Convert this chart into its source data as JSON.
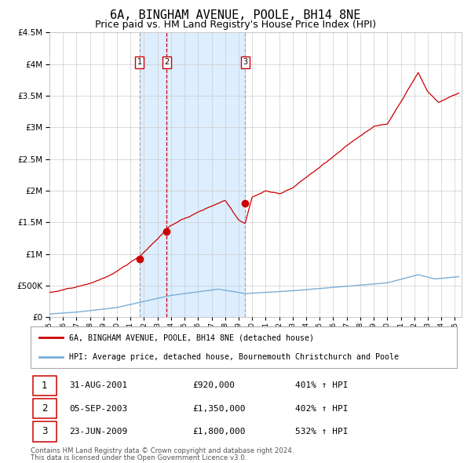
{
  "title": "6A, BINGHAM AVENUE, POOLE, BH14 8NE",
  "subtitle": "Price paid vs. HM Land Registry's House Price Index (HPI)",
  "legend_line1": "6A, BINGHAM AVENUE, POOLE, BH14 8NE (detached house)",
  "legend_line2": "HPI: Average price, detached house, Bournemouth Christchurch and Poole",
  "footer_line1": "Contains HM Land Registry data © Crown copyright and database right 2024.",
  "footer_line2": "This data is licensed under the Open Government Licence v3.0.",
  "table": [
    {
      "num": 1,
      "date": "31-AUG-2001",
      "price": "£920,000",
      "hpi": "401% ↑ HPI"
    },
    {
      "num": 2,
      "date": "05-SEP-2003",
      "price": "£1,350,000",
      "hpi": "402% ↑ HPI"
    },
    {
      "num": 3,
      "date": "23-JUN-2009",
      "price": "£1,800,000",
      "hpi": "532% ↑ HPI"
    }
  ],
  "sale_dates_decimal": [
    2001.664,
    2003.676,
    2009.477
  ],
  "sale_prices": [
    920000,
    1350000,
    1800000
  ],
  "vline1_x": 2001.664,
  "vline2_x": 2003.676,
  "vline3_x": 2009.477,
  "shade_start": 2001.664,
  "shade_end": 2009.477,
  "ylim": [
    0,
    4500000
  ],
  "xlim_start": 1995.0,
  "xlim_end": 2025.5,
  "hpi_color": "#7aaed6",
  "price_color": "#cc0000",
  "vline1_color": "#aaaaaa",
  "vline2_color": "#cc0000",
  "vline3_color": "#aaaaaa",
  "shade_color": "#ddeeff",
  "grid_color": "#cccccc",
  "background_color": "#ffffff",
  "title_fontsize": 11,
  "subtitle_fontsize": 9
}
